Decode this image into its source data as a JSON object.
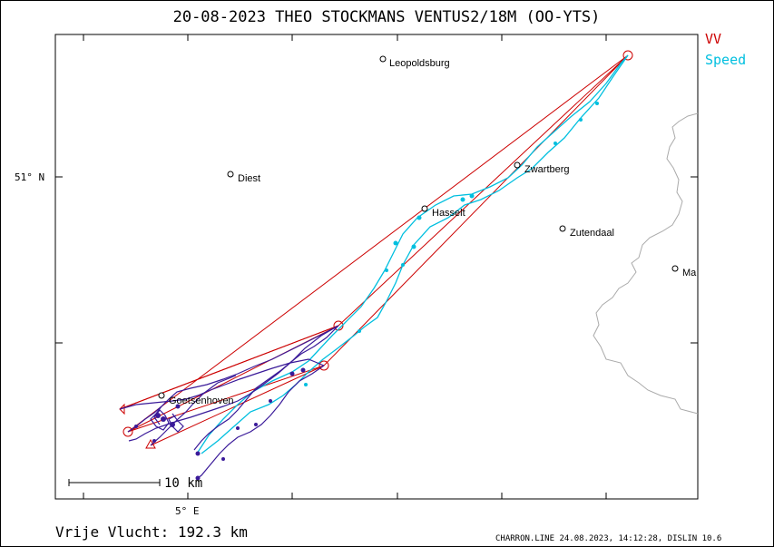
{
  "title": "20-08-2023   THEO STOCKMANS   VENTUS2/18M (OO-YTS)",
  "legend": {
    "vv": "VV",
    "speed": "Speed"
  },
  "towns": [
    {
      "name": "Leopoldsburg"
    },
    {
      "name": "Diest"
    },
    {
      "name": "Zwartberg"
    },
    {
      "name": "Hasselt"
    },
    {
      "name": "Zutendaal"
    },
    {
      "name": "Ma"
    },
    {
      "name": "Goetsenhoven"
    }
  ],
  "axis": {
    "lat_label": "51° N",
    "lon_label": "5° E"
  },
  "scale_bar": {
    "label": "10 km"
  },
  "distance": "Vrije Vlucht:  192.3 km",
  "footer": "CHARRON.LINE 24.08.2023, 14:12:28, DISLIN 10.6",
  "colors": {
    "vv": "#cc0000",
    "speed": "#00bfdf",
    "track": "#3a1a99",
    "border": "#aaaaaa"
  }
}
